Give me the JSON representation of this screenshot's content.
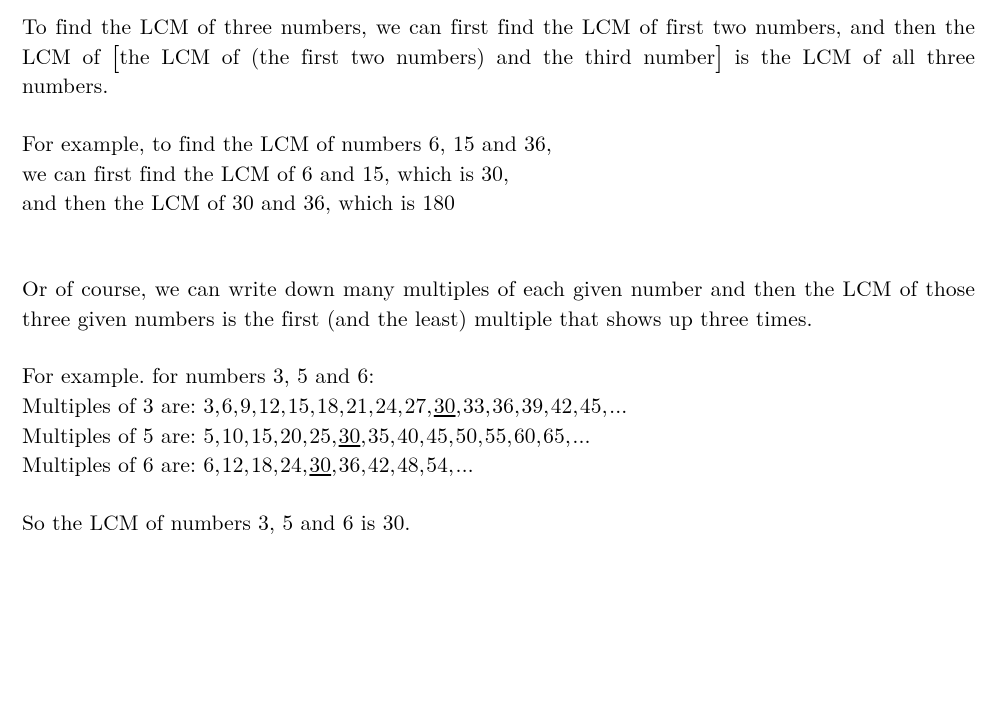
{
  "text_color": "#000000",
  "background_color": "#ffffff",
  "font_family": "Computer Modern / Latin Modern (serif)",
  "font_size_pt": 16,
  "big_bracket_size_pt": 21,
  "para1": {
    "seg1": "To find the LCM of three numbers, we can first find the LCM of first two numbers, and then the LCM of ",
    "open_bracket": "[",
    "seg2": "the LCM of (the first two numbers) and the third number",
    "close_bracket": "]",
    "seg3": " is the LCM of all three numbers."
  },
  "example1": {
    "line1": "For example, to find the LCM of numbers 6, 15 and 36,",
    "line2": "we can first find the LCM of 6 and 15, which is 30,",
    "line3": "and then the LCM of 30 and 36, which is 180"
  },
  "para2": "Or of course, we can write down many multiples of each given number and then the LCM of those three given numbers is the first (and the least) multiple that shows up three times.",
  "example2": {
    "intro": "For example. for numbers 3, 5 and 6:",
    "m3": {
      "label": "Multiples of 3 are: ",
      "before": "3, 6, 9, 12, 15, 18, 21, 24, 27, ",
      "lcm": "30",
      "after": ", 33, 36, 39, 42, 45, ..."
    },
    "m5": {
      "label": "Multiples of 5 are: ",
      "before": "5, 10, 15, 20, 25, ",
      "lcm": "30",
      "after": ", 35, 40, 45, 50, 55, 60, 65, ..."
    },
    "m6": {
      "label": "Multiples of 6 are: ",
      "before": "6, 12, 18, 24, ",
      "lcm": "30",
      "after": ", 36, 42, 48, 54, ..."
    }
  },
  "conclusion": "So the LCM of numbers 3, 5 and 6 is 30."
}
